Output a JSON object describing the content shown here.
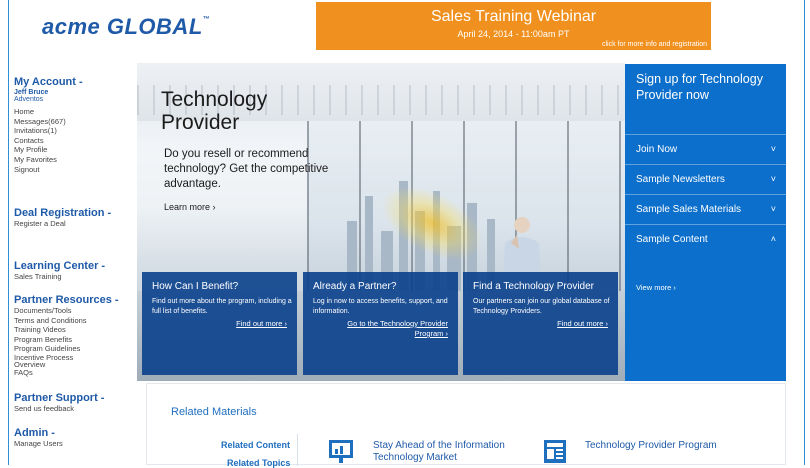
{
  "logo": {
    "text": "acme GLOBAL",
    "tm": "™"
  },
  "banner": {
    "title": "Sales Training Webinar",
    "date": "April 24, 2014 - 11:00am PT",
    "cta": "click for more info and registration",
    "color": "#f0901e"
  },
  "sidebar": {
    "account": {
      "heading": "My Account -",
      "user": "Jeff Bruce",
      "company": "Adventos",
      "items": [
        "Home",
        "Messages(667)",
        "Invitations(1)",
        "Contacts",
        "My Profile",
        "My Favorites",
        "Signout"
      ]
    },
    "deal": {
      "heading": "Deal Registration -",
      "items": [
        "Register a Deal"
      ]
    },
    "learning": {
      "heading": "Learning Center -",
      "items": [
        "Sales Training"
      ]
    },
    "resources": {
      "heading": "Partner Resources -",
      "items": [
        "Documents/Tools",
        "Terms and Conditions",
        "Training Videos",
        "Program Benefits",
        "Program Guidelines",
        "Incentive Process",
        "Overview",
        "FAQs"
      ]
    },
    "support": {
      "heading": "Partner Support -",
      "items": [
        "Send us feedback"
      ]
    },
    "admin": {
      "heading": "Admin -",
      "items": [
        "Manage Users"
      ]
    }
  },
  "hero": {
    "title": "Technology Provider",
    "desc": "Do you resell or recommend technology? Get the competitive advantage.",
    "learn_more": "Learn more ›",
    "cards": [
      {
        "title": "How Can I Benefit?",
        "text": "Find out more about the program, including a full list of benefits.",
        "link": "Find out more ›"
      },
      {
        "title": "Already a Partner?",
        "text": "Log in now to access benefits, support, and information.",
        "link": "Go to the  Technology Provider Program ›"
      },
      {
        "title": "Find a Technology Provider",
        "text": "Our partners can join our global database of Technology Providers.",
        "link": "Find out more ›"
      }
    ]
  },
  "right_panel": {
    "title": "Sign up for Technology Provider now",
    "items": [
      {
        "label": "Join Now",
        "chevron": "˅"
      },
      {
        "label": "Sample Newsletters",
        "chevron": "˅"
      },
      {
        "label": "Sample Sales Materials",
        "chevron": "˅"
      },
      {
        "label": "Sample Content",
        "chevron": "˄"
      }
    ],
    "view_more": "View more ›",
    "color": "#0c6fcb"
  },
  "related": {
    "title": "Related Materials",
    "tabs": [
      "Related Content",
      "Related Topics"
    ],
    "items": [
      {
        "text": "Stay Ahead of the Information Technology Market",
        "icon": "presentation-icon"
      },
      {
        "text": "Technology Provider Program",
        "icon": "newsletter-icon"
      }
    ]
  }
}
